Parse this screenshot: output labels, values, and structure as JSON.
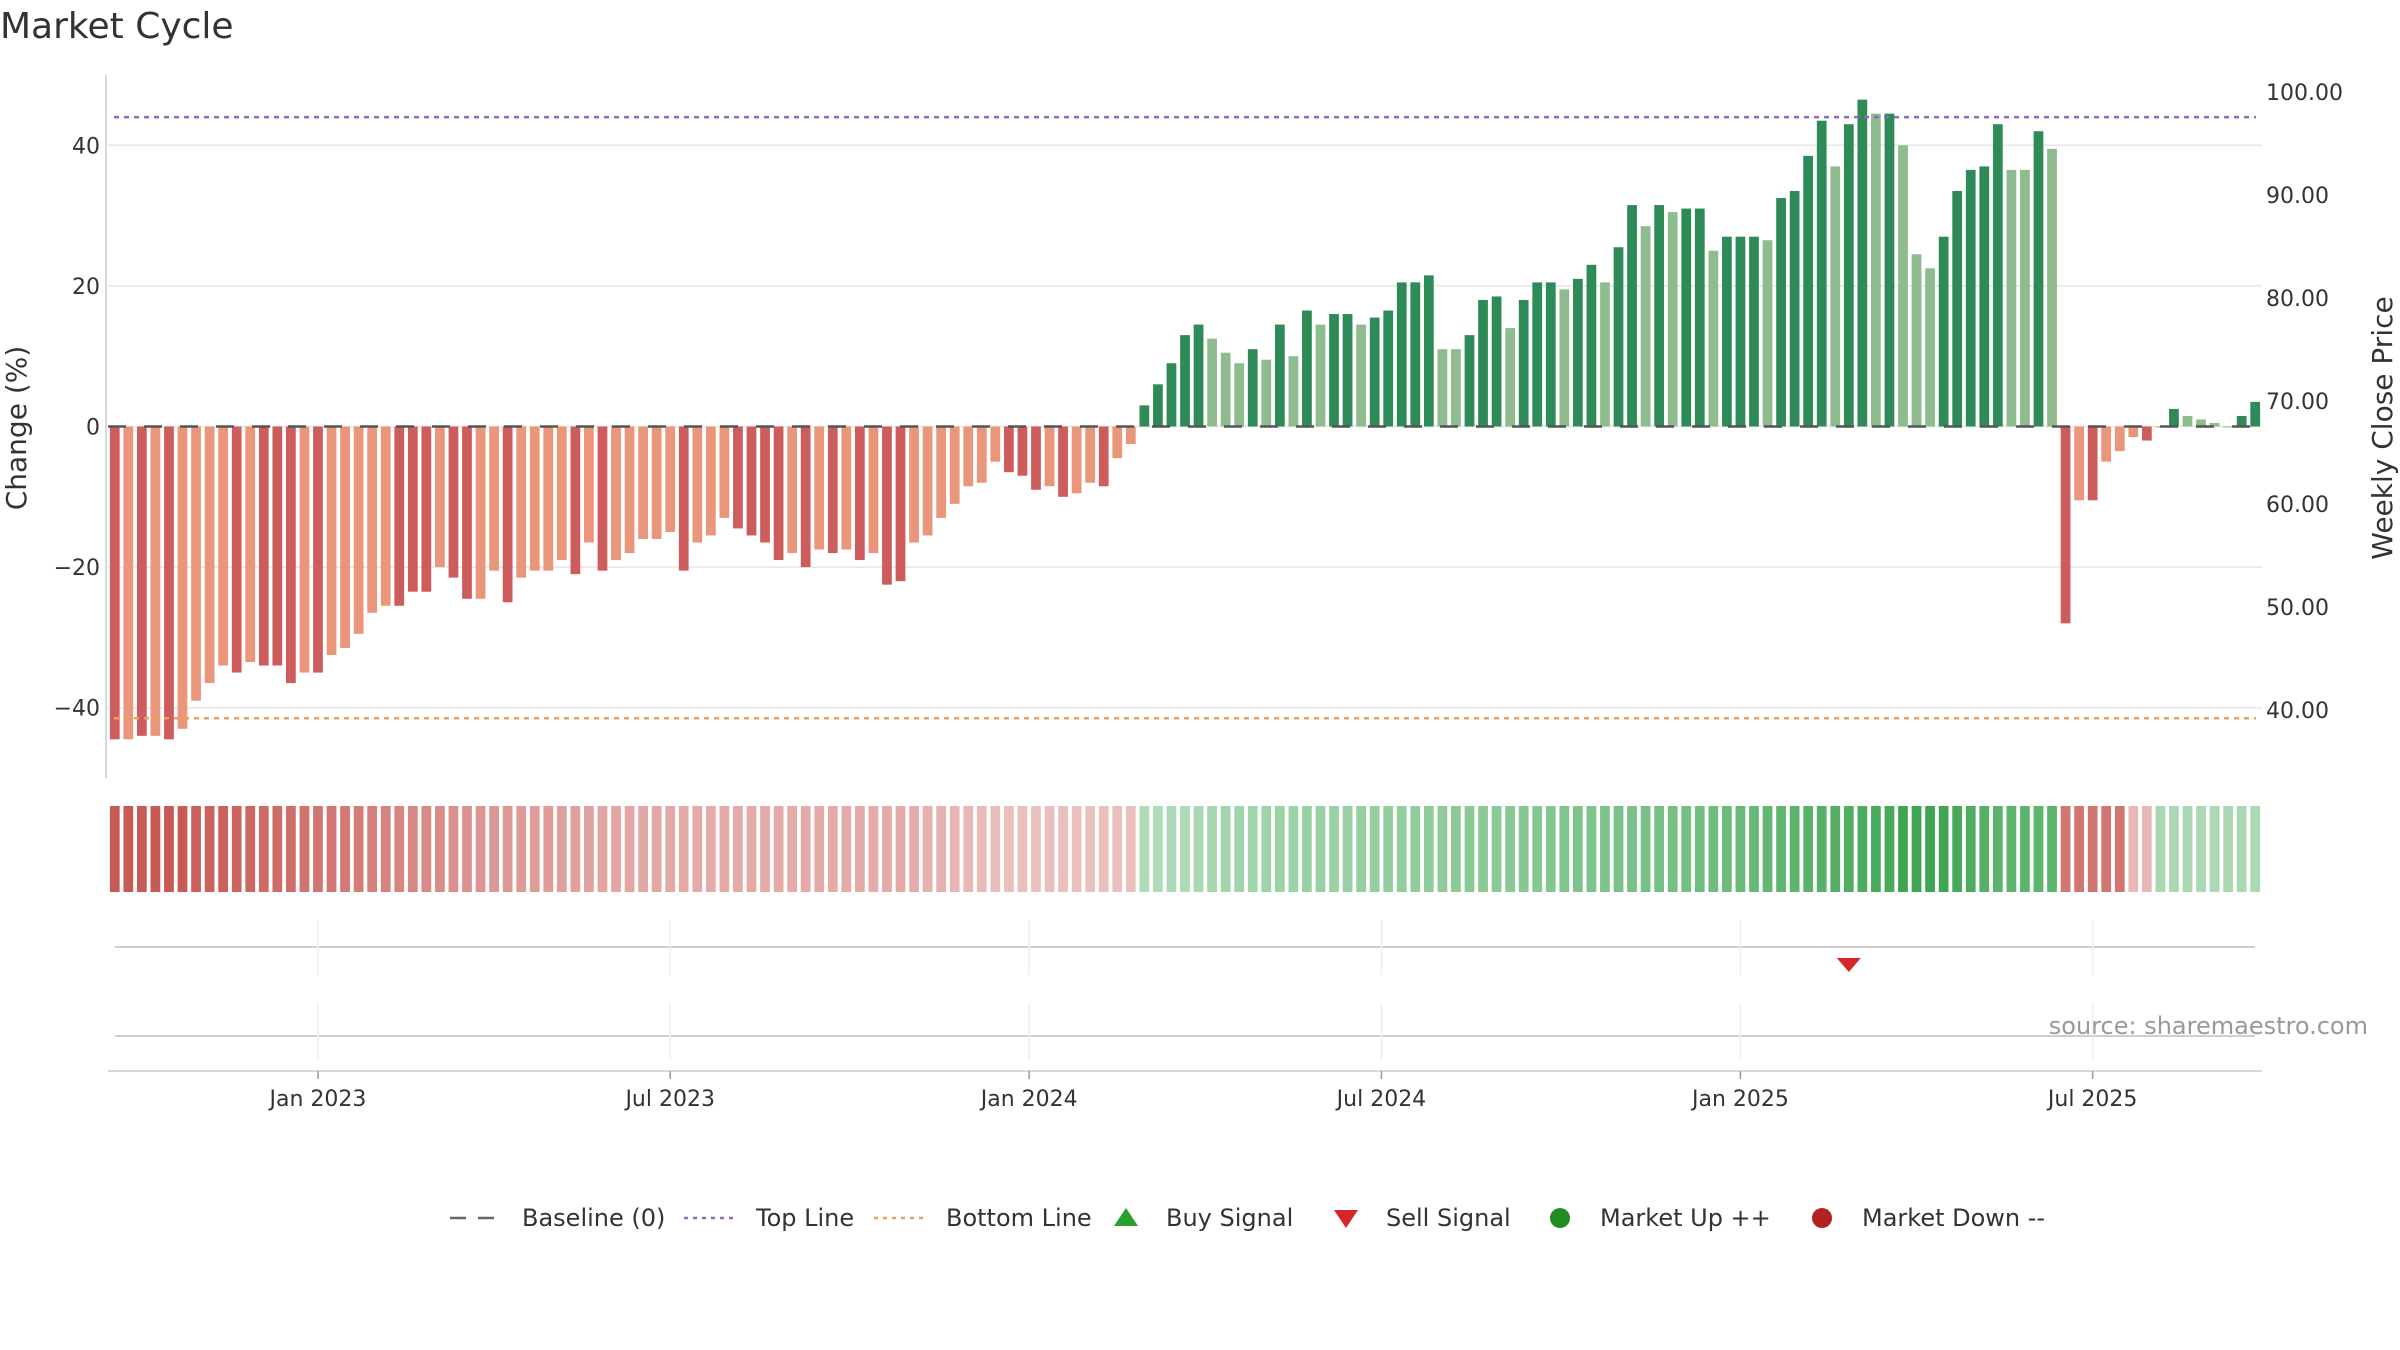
{
  "chart_data": {
    "type": "bar",
    "title": "Market Cycle",
    "ylabel": "Change (%)",
    "ylabel_right": "Weekly Close Price",
    "ylim": [
      -50,
      50
    ],
    "y_ticks": [
      -40,
      -20,
      0,
      20,
      40
    ],
    "y_tick_labels": [
      "−40",
      "−20",
      "0",
      "20",
      "40"
    ],
    "right_ticks": [
      "40.00",
      "50.00",
      "60.00",
      "70.00",
      "80.00",
      "90.00",
      "100.00"
    ],
    "x_tick_labels": [
      "Jan 2023",
      "Jul 2023",
      "Jan 2024",
      "Jul 2024",
      "Jan 2025",
      "Jul 2025"
    ],
    "x_tick_indices": [
      15,
      41,
      67.5,
      93.5,
      120,
      146
    ],
    "top_line": 44,
    "bottom_line": -41.5,
    "baseline": 0,
    "grid": true,
    "legend_position": "bottom",
    "source": "source: sharemaestro.com",
    "values": [
      -44.5,
      -44.5,
      -44,
      -44,
      -44.5,
      -43,
      -39,
      -36.5,
      -34,
      -35,
      -33.5,
      -34,
      -34,
      -36.5,
      -35,
      -35,
      -32.5,
      -31.5,
      -29.5,
      -26.5,
      -25.5,
      -25.5,
      -23.5,
      -23.5,
      -20,
      -21.5,
      -24.5,
      -24.5,
      -20.5,
      -25,
      -21.5,
      -20.5,
      -20.5,
      -19,
      -21,
      -16.5,
      -20.5,
      -19,
      -18,
      -16,
      -16,
      -15,
      -20.5,
      -16.5,
      -15.5,
      -13,
      -14.5,
      -15.5,
      -16.5,
      -19,
      -18,
      -20,
      -17.5,
      -18,
      -17.5,
      -19,
      -18,
      -22.5,
      -22,
      -16.5,
      -15.5,
      -13,
      -11,
      -8.5,
      -8,
      -5,
      -6.5,
      -7,
      -9,
      -8.5,
      -10,
      -9.5,
      -8,
      -8.5,
      -4.5,
      -2.5,
      3,
      6,
      9,
      13,
      14.5,
      12.5,
      10.5,
      9,
      11,
      9.5,
      14.5,
      10,
      16.5,
      14.5,
      16,
      16,
      14.5,
      15.5,
      16.5,
      20.5,
      20.5,
      21.5,
      11,
      11,
      13,
      18,
      18.5,
      14,
      18,
      20.5,
      20.5,
      19.5,
      21,
      23,
      20.5,
      25.5,
      31.5,
      28.5,
      31.5,
      30.5,
      31,
      31,
      25,
      27,
      27,
      27,
      26.5,
      32.5,
      33.5,
      38.5,
      43.5,
      37,
      43,
      46.5,
      44.5,
      44.5,
      40,
      24.5,
      22.5,
      27,
      33.5,
      36.5,
      37,
      43,
      36.5,
      36.5,
      42,
      39.5,
      -28,
      -10.5,
      -10.5,
      -5,
      -3.5,
      -1.5,
      -2,
      0,
      2.5,
      1.5,
      1,
      0.5,
      0,
      1.5,
      3.5
    ],
    "bar_colors": [
      "#cd5c5c",
      "#e9967a",
      "#cd5c5c",
      "#e9967a",
      "#cd5c5c",
      "#e9967a",
      "#e9967a",
      "#e9967a",
      "#e9967a",
      "#cd5c5c",
      "#e9967a",
      "#cd5c5c",
      "#cd5c5c",
      "#cd5c5c",
      "#e9967a",
      "#cd5c5c",
      "#e9967a",
      "#e9967a",
      "#e9967a",
      "#e9967a",
      "#e9967a",
      "#cd5c5c",
      "#cd5c5c",
      "#cd5c5c",
      "#e9967a",
      "#cd5c5c",
      "#cd5c5c",
      "#e9967a",
      "#e9967a",
      "#cd5c5c",
      "#e9967a",
      "#e9967a",
      "#e9967a",
      "#e9967a",
      "#cd5c5c",
      "#e9967a",
      "#cd5c5c",
      "#e9967a",
      "#e9967a",
      "#e9967a",
      "#e9967a",
      "#e9967a",
      "#cd5c5c",
      "#e9967a",
      "#e9967a",
      "#e9967a",
      "#cd5c5c",
      "#cd5c5c",
      "#cd5c5c",
      "#cd5c5c",
      "#e9967a",
      "#cd5c5c",
      "#e9967a",
      "#cd5c5c",
      "#e9967a",
      "#cd5c5c",
      "#e9967a",
      "#cd5c5c",
      "#cd5c5c",
      "#e9967a",
      "#e9967a",
      "#e9967a",
      "#e9967a",
      "#e9967a",
      "#e9967a",
      "#e9967a",
      "#cd5c5c",
      "#cd5c5c",
      "#cd5c5c",
      "#e9967a",
      "#cd5c5c",
      "#e9967a",
      "#e9967a",
      "#cd5c5c",
      "#e9967a",
      "#e9967a",
      "#2e8b57",
      "#2e8b57",
      "#2e8b57",
      "#2e8b57",
      "#2e8b57",
      "#8fbc8f",
      "#8fbc8f",
      "#8fbc8f",
      "#2e8b57",
      "#8fbc8f",
      "#2e8b57",
      "#8fbc8f",
      "#2e8b57",
      "#8fbc8f",
      "#2e8b57",
      "#2e8b57",
      "#8fbc8f",
      "#2e8b57",
      "#2e8b57",
      "#2e8b57",
      "#2e8b57",
      "#2e8b57",
      "#8fbc8f",
      "#8fbc8f",
      "#2e8b57",
      "#2e8b57",
      "#2e8b57",
      "#8fbc8f",
      "#2e8b57",
      "#2e8b57",
      "#2e8b57",
      "#8fbc8f",
      "#2e8b57",
      "#2e8b57",
      "#8fbc8f",
      "#2e8b57",
      "#2e8b57",
      "#8fbc8f",
      "#2e8b57",
      "#8fbc8f",
      "#2e8b57",
      "#2e8b57",
      "#8fbc8f",
      "#2e8b57",
      "#2e8b57",
      "#2e8b57",
      "#8fbc8f",
      "#2e8b57",
      "#2e8b57",
      "#2e8b57",
      "#2e8b57",
      "#8fbc8f",
      "#2e8b57",
      "#2e8b57",
      "#8fbc8f",
      "#2e8b57",
      "#8fbc8f",
      "#8fbc8f",
      "#8fbc8f",
      "#2e8b57",
      "#2e8b57",
      "#2e8b57",
      "#2e8b57",
      "#2e8b57",
      "#8fbc8f",
      "#8fbc8f",
      "#2e8b57",
      "#8fbc8f",
      "#cd5c5c",
      "#e9967a",
      "#cd5c5c",
      "#e9967a",
      "#e9967a",
      "#e9967a",
      "#cd5c5c",
      "#e9967a",
      "#2e8b57",
      "#8fbc8f",
      "#8fbc8f",
      "#8fbc8f",
      "#8fbc8f",
      "#2e8b57",
      "#2e8b57"
    ],
    "strength": [
      1,
      1,
      1,
      1,
      1,
      1,
      0.95,
      0.95,
      0.95,
      0.92,
      0.9,
      0.88,
      0.86,
      0.84,
      0.82,
      0.8,
      0.78,
      0.76,
      0.74,
      0.72,
      0.7,
      0.68,
      0.66,
      0.64,
      0.62,
      0.6,
      0.58,
      0.56,
      0.55,
      0.54,
      0.52,
      0.5,
      0.5,
      0.48,
      0.47,
      0.46,
      0.45,
      0.44,
      0.43,
      0.42,
      0.42,
      0.41,
      0.4,
      0.4,
      0.4,
      0.4,
      0.4,
      0.4,
      0.4,
      0.4,
      0.4,
      0.4,
      0.4,
      0.4,
      0.4,
      0.4,
      0.4,
      0.4,
      0.4,
      0.38,
      0.36,
      0.34,
      0.32,
      0.3,
      0.28,
      0.26,
      0.25,
      0.24,
      0.24,
      0.24,
      0.24,
      0.24,
      0.24,
      0.24,
      0.24,
      0.24,
      0.25,
      0.26,
      0.27,
      0.28,
      0.3,
      0.32,
      0.34,
      0.35,
      0.36,
      0.37,
      0.38,
      0.39,
      0.4,
      0.4,
      0.4,
      0.41,
      0.42,
      0.43,
      0.44,
      0.45,
      0.46,
      0.47,
      0.48,
      0.49,
      0.5,
      0.5,
      0.51,
      0.52,
      0.53,
      0.54,
      0.55,
      0.56,
      0.57,
      0.58,
      0.59,
      0.6,
      0.61,
      0.62,
      0.63,
      0.64,
      0.65,
      0.66,
      0.68,
      0.7,
      0.72,
      0.74,
      0.76,
      0.78,
      0.8,
      0.82,
      0.84,
      0.86,
      0.88,
      0.9,
      0.92,
      0.95,
      1,
      1,
      1,
      1,
      0.95,
      0.9,
      0.85,
      0.82,
      0.8,
      0.8,
      0.8,
      0.8,
      0.8,
      0.8,
      0.8,
      0.8,
      0.8,
      0.3,
      0.3,
      0.3,
      0.3,
      0.3,
      0.3,
      0.3,
      0.3,
      0.3,
      0.3,
      0.3,
      0.3,
      0.3,
      0.3,
      0.3
    ],
    "sell_signals": [
      128
    ],
    "buy_signals": [],
    "legend": [
      {
        "label": "Baseline (0)",
        "kind": "dash",
        "color": "#666666"
      },
      {
        "label": "Top Line",
        "kind": "dot",
        "color": "#9467bd"
      },
      {
        "label": "Bottom Line",
        "kind": "dot",
        "color": "#e8a15a"
      },
      {
        "label": "Buy Signal",
        "kind": "tri-up",
        "color": "#2ca02c"
      },
      {
        "label": "Sell Signal",
        "kind": "tri-down",
        "color": "#d62728"
      },
      {
        "label": "Market Up ++",
        "kind": "circle",
        "color": "#228b22"
      },
      {
        "label": "Market Down --",
        "kind": "circle",
        "color": "#b22222"
      }
    ]
  }
}
